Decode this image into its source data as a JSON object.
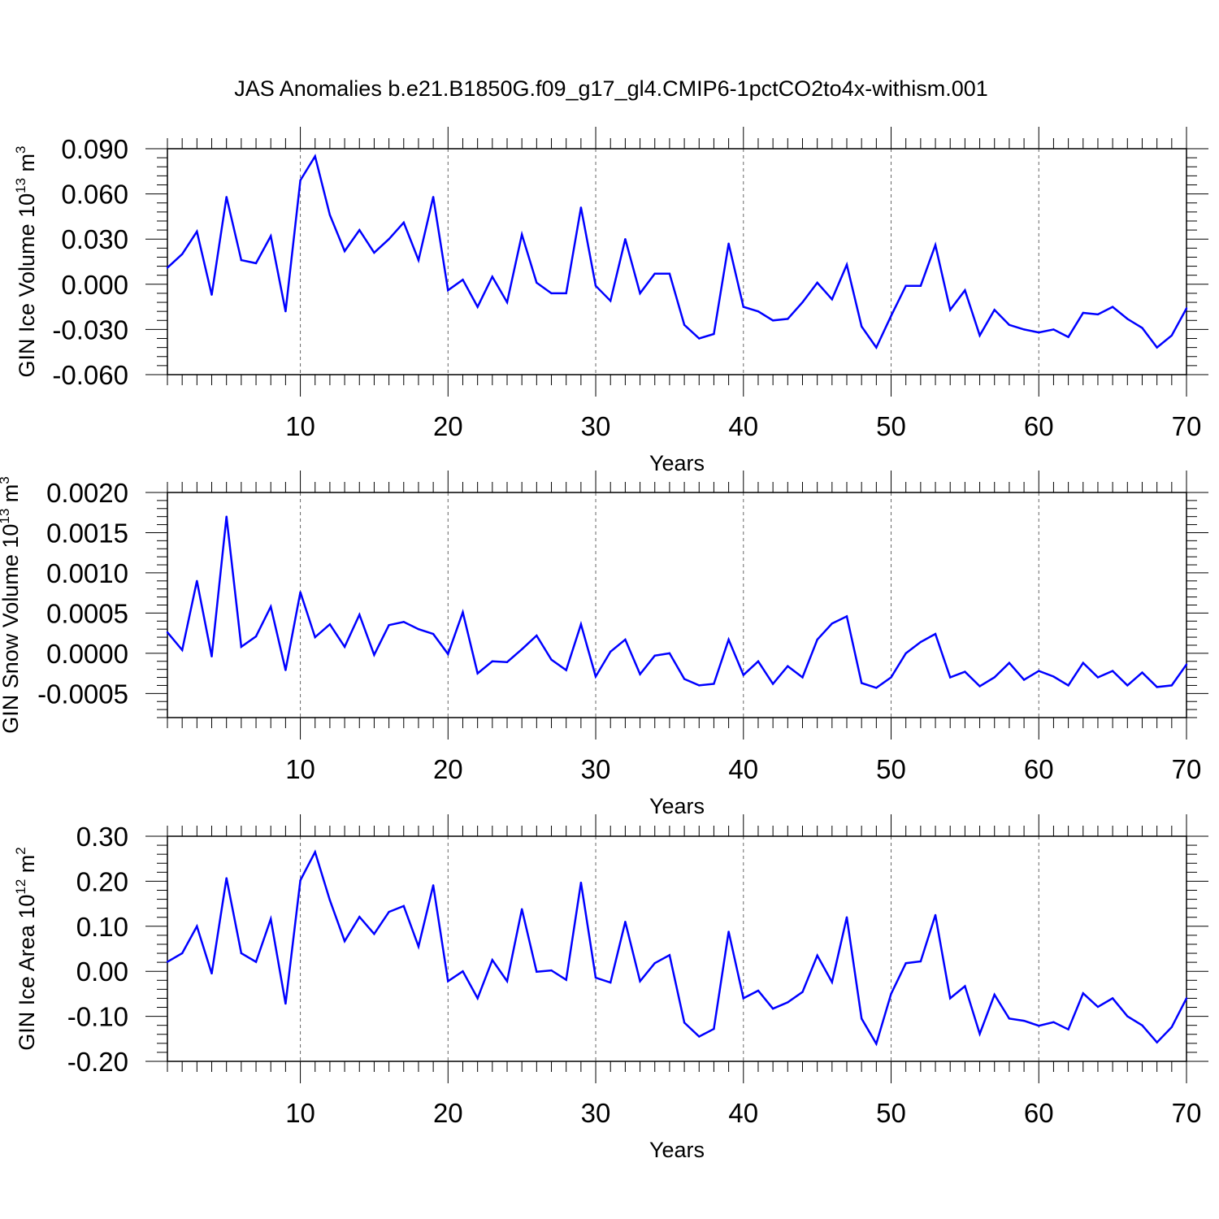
{
  "title": "JAS Anomalies b.e21.B1850G.f09_g17_gl4.CMIP6-1pctCO2to4x-withism.001",
  "line_color": "#0000ff",
  "chart_data": [
    {
      "type": "line",
      "xlabel": "Years",
      "ylabel_main": "GIN Ice Volume 10",
      "ylabel_exp": "13",
      "ylabel_unit": " m",
      "ylabel_unit_exp": "3",
      "xlim": [
        1,
        70
      ],
      "ylim": [
        -0.06,
        0.09
      ],
      "yticks": [
        -0.06,
        -0.03,
        0.0,
        0.03,
        0.06,
        0.09
      ],
      "ytick_labels": [
        "-0.060",
        "-0.030",
        "0.000",
        "0.030",
        "0.060",
        "0.090"
      ],
      "xticks": [
        10,
        20,
        30,
        40,
        50,
        60,
        70
      ],
      "xtick_labels": [
        "10",
        "20",
        "30",
        "40",
        "50",
        "60",
        "70"
      ],
      "grid": "vertical dashed at major x ticks",
      "x": [
        1,
        2,
        3,
        4,
        5,
        6,
        7,
        8,
        9,
        10,
        11,
        12,
        13,
        14,
        15,
        16,
        17,
        18,
        19,
        20,
        21,
        22,
        23,
        24,
        25,
        26,
        27,
        28,
        29,
        30,
        31,
        32,
        33,
        34,
        35,
        36,
        37,
        38,
        39,
        40,
        41,
        42,
        43,
        44,
        45,
        46,
        47,
        48,
        49,
        50,
        51,
        52,
        53,
        54,
        55,
        56,
        57,
        58,
        59,
        60,
        61,
        62,
        63,
        64,
        65,
        66,
        67,
        68,
        69,
        70
      ],
      "y": [
        0.011,
        0.02,
        0.035,
        -0.007,
        0.058,
        0.016,
        0.014,
        0.032,
        -0.018,
        0.069,
        0.085,
        0.046,
        0.022,
        0.036,
        0.021,
        0.03,
        0.041,
        0.016,
        0.058,
        -0.004,
        0.003,
        -0.015,
        0.005,
        -0.012,
        0.033,
        0.001,
        -0.006,
        -0.006,
        0.051,
        -0.001,
        -0.011,
        0.03,
        -0.006,
        0.007,
        0.007,
        -0.027,
        -0.036,
        -0.033,
        0.027,
        -0.015,
        -0.018,
        -0.024,
        -0.023,
        -0.012,
        0.001,
        -0.01,
        0.013,
        -0.028,
        -0.042,
        -0.021,
        -0.001,
        -0.001,
        0.026,
        -0.017,
        -0.004,
        -0.034,
        -0.017,
        -0.027,
        -0.03,
        -0.032,
        -0.03,
        -0.035,
        -0.019,
        -0.02,
        -0.015,
        -0.023,
        -0.029,
        -0.042,
        -0.034,
        -0.016
      ]
    },
    {
      "type": "line",
      "xlabel": "Years",
      "ylabel_main": "GIN Snow Volume 10",
      "ylabel_exp": "13",
      "ylabel_unit": " m",
      "ylabel_unit_exp": "3",
      "xlim": [
        1,
        70
      ],
      "ylim": [
        -0.0008,
        0.002
      ],
      "yticks": [
        -0.0005,
        0.0,
        0.0005,
        0.001,
        0.0015,
        0.002
      ],
      "ytick_labels": [
        "-0.0005",
        "0.0000",
        "0.0005",
        "0.0010",
        "0.0015",
        "0.0020"
      ],
      "xticks": [
        10,
        20,
        30,
        40,
        50,
        60,
        70
      ],
      "xtick_labels": [
        "10",
        "20",
        "30",
        "40",
        "50",
        "60",
        "70"
      ],
      "grid": "vertical dashed at major x ticks",
      "x": [
        1,
        2,
        3,
        4,
        5,
        6,
        7,
        8,
        9,
        10,
        11,
        12,
        13,
        14,
        15,
        16,
        17,
        18,
        19,
        20,
        21,
        22,
        23,
        24,
        25,
        26,
        27,
        28,
        29,
        30,
        31,
        32,
        33,
        34,
        35,
        36,
        37,
        38,
        39,
        40,
        41,
        42,
        43,
        44,
        45,
        46,
        47,
        48,
        49,
        50,
        51,
        52,
        53,
        54,
        55,
        56,
        57,
        58,
        59,
        60,
        61,
        62,
        63,
        64,
        65,
        66,
        67,
        68,
        69,
        70
      ],
      "y": [
        0.00026,
        4e-05,
        0.0009,
        -4e-05,
        0.0017,
        8e-05,
        0.00021,
        0.00058,
        -0.00021,
        0.00076,
        0.0002,
        0.00036,
        8e-05,
        0.00048,
        -2e-05,
        0.00035,
        0.00039,
        0.0003,
        0.00024,
        -1e-05,
        0.00051,
        -0.00025,
        -0.0001,
        -0.00011,
        5e-05,
        0.00022,
        -8e-05,
        -0.00021,
        0.00036,
        -0.00029,
        2e-05,
        0.00017,
        -0.00026,
        -3e-05,
        0.0,
        -0.00032,
        -0.0004,
        -0.00038,
        0.00017,
        -0.00027,
        -0.0001,
        -0.00038,
        -0.00016,
        -0.0003,
        0.00017,
        0.00037,
        0.00046,
        -0.00037,
        -0.00043,
        -0.0003,
        0.0,
        0.00014,
        0.00024,
        -0.0003,
        -0.00023,
        -0.00041,
        -0.0003,
        -0.00012,
        -0.00033,
        -0.00022,
        -0.00029,
        -0.0004,
        -0.00012,
        -0.0003,
        -0.00022,
        -0.0004,
        -0.00024,
        -0.00042,
        -0.0004,
        -0.00014
      ]
    },
    {
      "type": "line",
      "xlabel": "Years",
      "ylabel_main": "GIN Ice Area 10",
      "ylabel_exp": "12",
      "ylabel_unit": " m",
      "ylabel_unit_exp": "2",
      "xlim": [
        1,
        70
      ],
      "ylim": [
        -0.2,
        0.3
      ],
      "yticks": [
        -0.2,
        -0.1,
        0.0,
        0.1,
        0.2,
        0.3
      ],
      "ytick_labels": [
        "-0.20",
        "-0.10",
        "0.00",
        "0.10",
        "0.20",
        "0.30"
      ],
      "xticks": [
        10,
        20,
        30,
        40,
        50,
        60,
        70
      ],
      "xtick_labels": [
        "10",
        "20",
        "30",
        "40",
        "50",
        "60",
        "70"
      ],
      "grid": "vertical dashed at major x ticks",
      "x": [
        1,
        2,
        3,
        4,
        5,
        6,
        7,
        8,
        9,
        10,
        11,
        12,
        13,
        14,
        15,
        16,
        17,
        18,
        19,
        20,
        21,
        22,
        23,
        24,
        25,
        26,
        27,
        28,
        29,
        30,
        31,
        32,
        33,
        34,
        35,
        36,
        37,
        38,
        39,
        40,
        41,
        42,
        43,
        44,
        45,
        46,
        47,
        48,
        49,
        50,
        51,
        52,
        53,
        54,
        55,
        56,
        57,
        58,
        59,
        60,
        61,
        62,
        63,
        64,
        65,
        66,
        67,
        68,
        69,
        70
      ],
      "y": [
        0.021,
        0.04,
        0.1,
        -0.005,
        0.207,
        0.04,
        0.021,
        0.116,
        -0.072,
        0.202,
        0.265,
        0.158,
        0.067,
        0.121,
        0.083,
        0.132,
        0.145,
        0.055,
        0.191,
        -0.022,
        0.0,
        -0.06,
        0.025,
        -0.022,
        0.138,
        -0.001,
        0.002,
        -0.019,
        0.197,
        -0.014,
        -0.025,
        0.11,
        -0.022,
        0.018,
        0.036,
        -0.114,
        -0.145,
        -0.128,
        0.088,
        -0.06,
        -0.043,
        -0.083,
        -0.069,
        -0.046,
        0.035,
        -0.024,
        0.12,
        -0.105,
        -0.161,
        -0.05,
        0.018,
        0.022,
        0.125,
        -0.06,
        -0.033,
        -0.139,
        -0.052,
        -0.105,
        -0.11,
        -0.121,
        -0.113,
        -0.129,
        -0.049,
        -0.079,
        -0.06,
        -0.1,
        -0.12,
        -0.158,
        -0.124,
        -0.06
      ]
    }
  ]
}
